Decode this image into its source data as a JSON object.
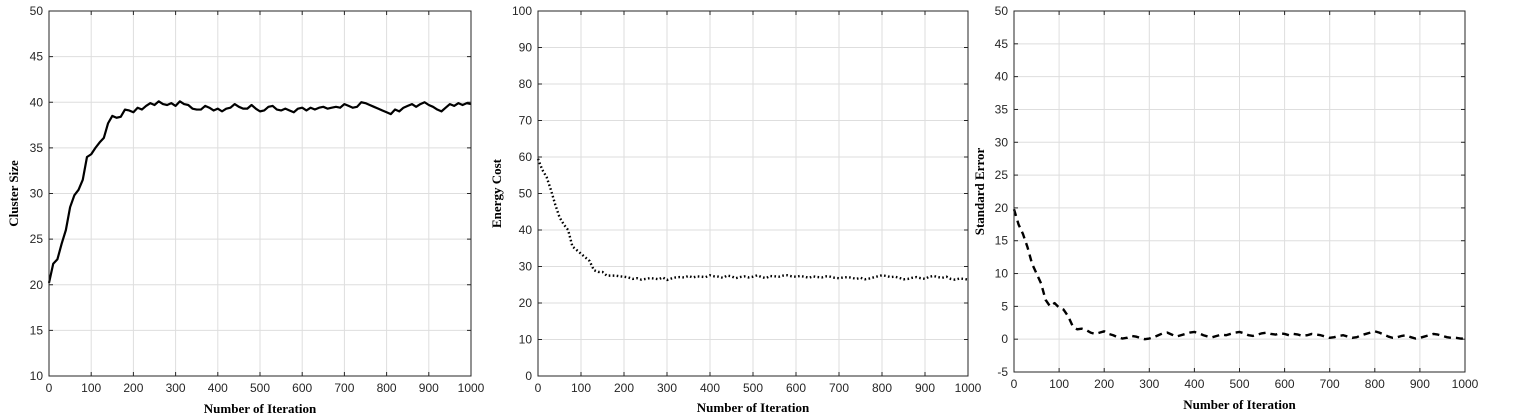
{
  "chart_data": [
    {
      "type": "line",
      "xlabel": "Number of Iteration",
      "ylabel": "Cluster Size",
      "xlim": [
        0,
        1000
      ],
      "ylim": [
        10,
        50
      ],
      "xticks": [
        0,
        100,
        200,
        300,
        400,
        500,
        600,
        700,
        800,
        900,
        1000
      ],
      "yticks": [
        10,
        15,
        20,
        25,
        30,
        35,
        40,
        45,
        50
      ],
      "grid": true,
      "line_style": "solid",
      "color": "#000000",
      "series": [
        {
          "x": [
            0,
            10,
            20,
            30,
            40,
            50,
            60,
            70,
            80,
            90,
            100,
            110,
            120,
            130,
            140,
            150,
            160,
            170,
            180,
            190,
            200,
            210,
            220,
            230,
            240,
            250,
            260,
            270,
            280,
            290,
            300,
            310,
            320,
            330,
            340,
            350,
            360,
            370,
            380,
            390,
            400,
            410,
            420,
            430,
            440,
            450,
            460,
            470,
            480,
            490,
            500,
            510,
            520,
            530,
            540,
            550,
            560,
            570,
            580,
            590,
            600,
            610,
            620,
            630,
            640,
            650,
            660,
            670,
            680,
            690,
            700,
            710,
            720,
            730,
            740,
            750,
            760,
            770,
            780,
            790,
            800,
            810,
            820,
            830,
            840,
            850,
            860,
            870,
            880,
            890,
            900,
            910,
            920,
            930,
            940,
            950,
            960,
            970,
            980,
            990,
            1000
          ],
          "values": [
            20.2,
            22.3,
            22.8,
            24.5,
            26,
            28.5,
            29.8,
            30.4,
            31.5,
            34,
            34.3,
            35,
            35.6,
            36.1,
            37.7,
            38.5,
            38.3,
            38.4,
            39.2,
            39.1,
            38.9,
            39.4,
            39.2,
            39.6,
            39.9,
            39.7,
            40.1,
            39.8,
            39.7,
            39.9,
            39.6,
            40.1,
            39.8,
            39.7,
            39.3,
            39.2,
            39.2,
            39.6,
            39.4,
            39.1,
            39.3,
            39,
            39.3,
            39.4,
            39.8,
            39.5,
            39.3,
            39.3,
            39.7,
            39.3,
            39,
            39.1,
            39.5,
            39.6,
            39.2,
            39.1,
            39.3,
            39.1,
            38.9,
            39.3,
            39.4,
            39.1,
            39.4,
            39.2,
            39.4,
            39.5,
            39.3,
            39.4,
            39.5,
            39.4,
            39.8,
            39.6,
            39.4,
            39.5,
            40,
            39.9,
            39.7,
            39.5,
            39.3,
            39.1,
            38.9,
            38.7,
            39.2,
            39,
            39.4,
            39.6,
            39.8,
            39.5,
            39.8,
            40,
            39.7,
            39.5,
            39.2,
            39,
            39.4,
            39.8,
            39.6,
            39.9,
            39.7,
            39.9,
            39.8
          ]
        }
      ]
    },
    {
      "type": "line",
      "xlabel": "Number of Iteration",
      "ylabel": "Energy Cost",
      "xlim": [
        0,
        1000
      ],
      "ylim": [
        0,
        100
      ],
      "xticks": [
        0,
        100,
        200,
        300,
        400,
        500,
        600,
        700,
        800,
        900,
        1000
      ],
      "yticks": [
        0,
        10,
        20,
        30,
        40,
        50,
        60,
        70,
        80,
        90,
        100
      ],
      "grid": true,
      "line_style": "dotted",
      "color": "#000000",
      "series": [
        {
          "x": [
            0,
            10,
            20,
            30,
            40,
            50,
            60,
            70,
            80,
            90,
            100,
            110,
            120,
            130,
            140,
            150,
            160,
            170,
            180,
            190,
            200,
            210,
            220,
            230,
            240,
            250,
            260,
            270,
            280,
            290,
            300,
            310,
            320,
            330,
            340,
            350,
            360,
            370,
            380,
            390,
            400,
            410,
            420,
            430,
            440,
            450,
            460,
            470,
            480,
            490,
            500,
            510,
            520,
            530,
            540,
            550,
            560,
            570,
            580,
            590,
            600,
            610,
            620,
            630,
            640,
            650,
            660,
            670,
            680,
            690,
            700,
            710,
            720,
            730,
            740,
            750,
            760,
            770,
            780,
            790,
            800,
            810,
            820,
            830,
            840,
            850,
            860,
            870,
            880,
            890,
            900,
            910,
            920,
            930,
            940,
            950,
            960,
            970,
            980,
            990,
            1000
          ],
          "values": [
            59.5,
            56.5,
            54.5,
            51,
            47,
            43.5,
            41.5,
            40,
            35.5,
            34.5,
            33.5,
            32.5,
            31.5,
            29,
            28.5,
            28.5,
            27.5,
            27.5,
            27.5,
            27.3,
            27.2,
            27,
            26.6,
            26.8,
            26.4,
            26.6,
            26.8,
            26.7,
            26.5,
            27,
            26.3,
            26.7,
            27,
            27.1,
            27,
            27.4,
            27,
            27.3,
            27.2,
            27.1,
            27.6,
            27.3,
            27.2,
            26.9,
            27.5,
            27.3,
            26.8,
            27.1,
            27.3,
            27,
            27.2,
            27.6,
            27.1,
            26.8,
            27.4,
            27.3,
            27.2,
            27.5,
            27.6,
            27.3,
            27.2,
            27.4,
            27.2,
            26.9,
            27.3,
            27.1,
            27,
            27.3,
            27.2,
            26.9,
            26.8,
            27,
            27.1,
            26.9,
            26.6,
            26.9,
            26.5,
            26.7,
            27,
            27.3,
            27.6,
            27.4,
            27.1,
            27.2,
            26.9,
            26.5,
            26.6,
            26.9,
            27.1,
            26.8,
            26.6,
            27.2,
            27.4,
            27.1,
            26.9,
            27.2,
            26.6,
            26.4,
            26.7,
            26.6,
            26.4
          ]
        }
      ]
    },
    {
      "type": "line",
      "xlabel": "Number of Iteration",
      "ylabel": "Standard Error",
      "xlim": [
        0,
        1000
      ],
      "ylim": [
        -5,
        50
      ],
      "xticks": [
        0,
        100,
        200,
        300,
        400,
        500,
        600,
        700,
        800,
        900,
        1000
      ],
      "yticks": [
        -5,
        0,
        5,
        10,
        15,
        20,
        25,
        30,
        35,
        40,
        45,
        50
      ],
      "grid": true,
      "line_style": "dashed",
      "color": "#000000",
      "series": [
        {
          "x": [
            0,
            10,
            20,
            30,
            40,
            50,
            60,
            70,
            80,
            90,
            100,
            110,
            120,
            130,
            140,
            150,
            160,
            170,
            180,
            190,
            200,
            210,
            220,
            230,
            240,
            250,
            260,
            270,
            280,
            290,
            300,
            310,
            320,
            330,
            340,
            350,
            360,
            370,
            380,
            390,
            400,
            410,
            420,
            430,
            440,
            450,
            460,
            470,
            480,
            490,
            500,
            510,
            520,
            530,
            540,
            550,
            560,
            570,
            580,
            590,
            600,
            610,
            620,
            630,
            640,
            650,
            660,
            670,
            680,
            690,
            700,
            710,
            720,
            730,
            740,
            750,
            760,
            770,
            780,
            790,
            800,
            810,
            820,
            830,
            840,
            850,
            860,
            870,
            880,
            890,
            900,
            910,
            920,
            930,
            940,
            950,
            960,
            970,
            980,
            990,
            1000
          ],
          "values": [
            19.8,
            17.5,
            16,
            14,
            11.5,
            10,
            8.5,
            6,
            5,
            5.5,
            4.8,
            4.5,
            3.5,
            2,
            1.5,
            1.6,
            1.4,
            1,
            0.8,
            1,
            1.2,
            0.8,
            0.6,
            0.3,
            0.1,
            0.2,
            0.5,
            0.4,
            0.2,
            0,
            0.1,
            0.3,
            0.6,
            0.9,
            1,
            0.7,
            0.4,
            0.6,
            0.8,
            1,
            1.1,
            0.9,
            0.6,
            0.4,
            0.3,
            0.5,
            0.7,
            0.6,
            0.8,
            1,
            1.1,
            0.9,
            0.6,
            0.5,
            0.7,
            0.9,
            1,
            0.8,
            0.7,
            0.9,
            0.8,
            0.6,
            0.8,
            0.7,
            0.5,
            0.6,
            0.8,
            0.7,
            0.6,
            0.4,
            0.2,
            0.3,
            0.5,
            0.6,
            0.4,
            0.2,
            0.3,
            0.6,
            0.8,
            1,
            1.2,
            1,
            0.7,
            0.4,
            0.2,
            0.3,
            0.5,
            0.6,
            0.3,
            0.1,
            0.2,
            0.4,
            0.6,
            0.8,
            0.7,
            0.5,
            0.3,
            0.2,
            0.2,
            0.1,
            0.1
          ]
        }
      ]
    }
  ]
}
